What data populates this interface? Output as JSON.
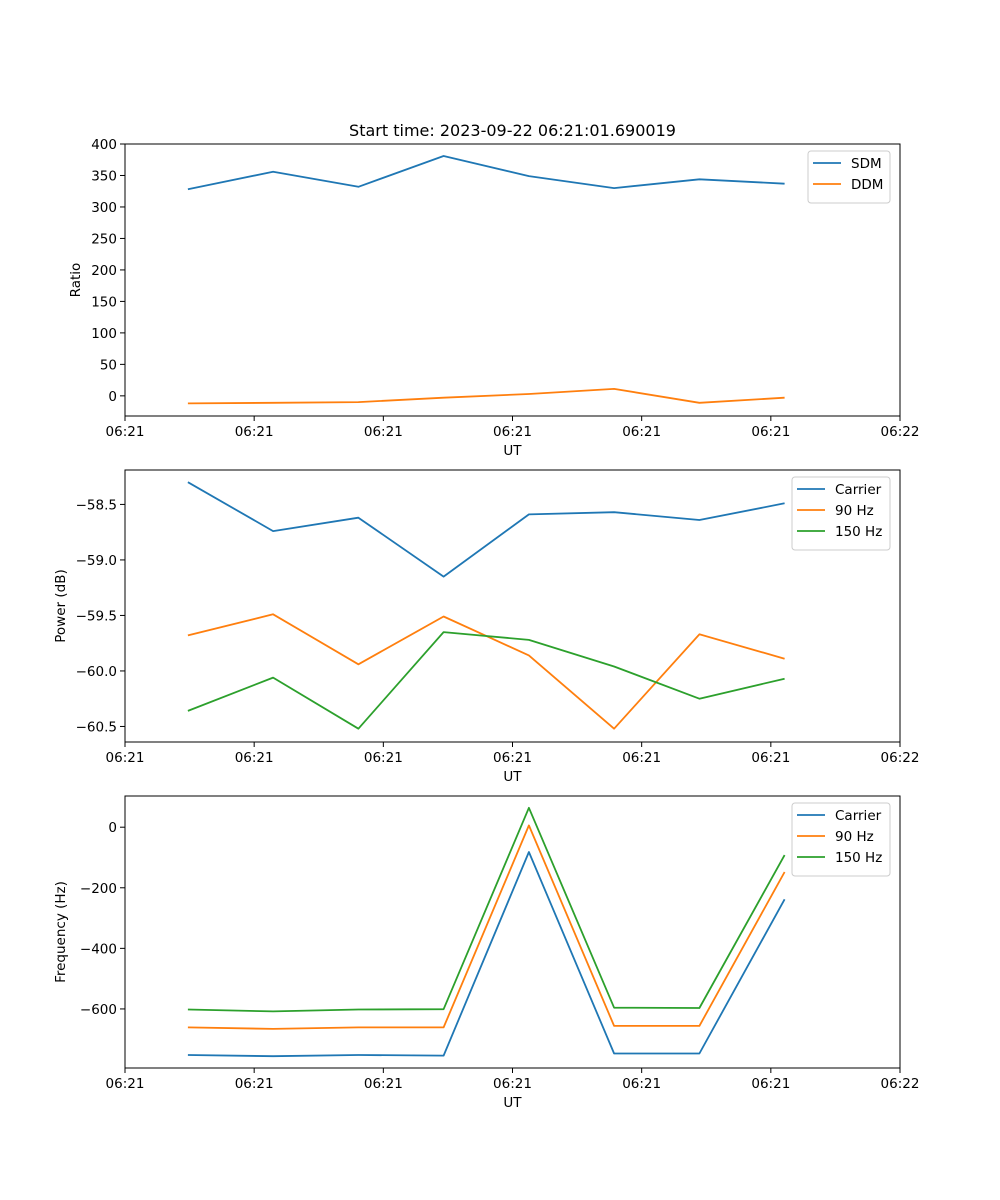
{
  "chart_data": [
    {
      "type": "line",
      "title": "Start time: 2023-09-22 06:21:01.690019",
      "xlabel": "UT",
      "ylabel": "Ratio",
      "xlim": [
        0,
        9
      ],
      "ylim": [
        -32,
        400
      ],
      "x_ticks": [
        0,
        1.5,
        3,
        4.5,
        6,
        7.5,
        9
      ],
      "x_tick_labels": [
        "06:21",
        "06:21",
        "06:21",
        "06:21",
        "06:21",
        "06:21",
        "06:22"
      ],
      "y_ticks": [
        0,
        50,
        100,
        150,
        200,
        250,
        300,
        350,
        400
      ],
      "y_tick_labels": [
        "0",
        "50",
        "100",
        "150",
        "200",
        "250",
        "300",
        "350",
        "400"
      ],
      "legend_position": "top-right",
      "x": [
        0.73,
        1.72,
        2.71,
        3.7,
        4.69,
        5.68,
        6.67,
        7.66
      ],
      "series": [
        {
          "name": "SDM",
          "color": "#1f77b4",
          "values": [
            328,
            356,
            332,
            381,
            349,
            330,
            344,
            337
          ]
        },
        {
          "name": "DDM",
          "color": "#ff7f0e",
          "values": [
            -12,
            -11,
            -10,
            -3,
            3,
            11,
            -11,
            -3
          ]
        }
      ]
    },
    {
      "type": "line",
      "title": "",
      "xlabel": "UT",
      "ylabel": "Power (dB)",
      "xlim": [
        0,
        9
      ],
      "ylim": [
        -60.64,
        -58.19
      ],
      "x_ticks": [
        0,
        1.5,
        3,
        4.5,
        6,
        7.5,
        9
      ],
      "x_tick_labels": [
        "06:21",
        "06:21",
        "06:21",
        "06:21",
        "06:21",
        "06:21",
        "06:22"
      ],
      "y_ticks": [
        -60.5,
        -60.0,
        -59.5,
        -59.0,
        -58.5
      ],
      "y_tick_labels": [
        "−60.5",
        "−60.0",
        "−59.5",
        "−59.0",
        "−58.5"
      ],
      "legend_position": "top-right",
      "x": [
        0.73,
        1.72,
        2.71,
        3.7,
        4.69,
        5.68,
        6.67,
        7.66
      ],
      "series": [
        {
          "name": "Carrier",
          "color": "#1f77b4",
          "values": [
            -58.3,
            -58.74,
            -58.62,
            -59.15,
            -58.59,
            -58.57,
            -58.64,
            -58.49
          ]
        },
        {
          "name": "90 Hz",
          "color": "#ff7f0e",
          "values": [
            -59.68,
            -59.49,
            -59.94,
            -59.51,
            -59.86,
            -60.52,
            -59.67,
            -59.89
          ]
        },
        {
          "name": "150 Hz",
          "color": "#2ca02c",
          "values": [
            -60.36,
            -60.06,
            -60.52,
            -59.65,
            -59.72,
            -59.96,
            -60.25,
            -60.07
          ]
        }
      ]
    },
    {
      "type": "line",
      "title": "",
      "xlabel": "UT",
      "ylabel": "Frequency (Hz)",
      "xlim": [
        0,
        9
      ],
      "ylim": [
        -795,
        103
      ],
      "x_ticks": [
        0,
        1.5,
        3,
        4.5,
        6,
        7.5,
        9
      ],
      "x_tick_labels": [
        "06:21",
        "06:21",
        "06:21",
        "06:21",
        "06:21",
        "06:21",
        "06:22"
      ],
      "y_ticks": [
        -600,
        -400,
        -200,
        0
      ],
      "y_tick_labels": [
        "−600",
        "−400",
        "−200",
        "0"
      ],
      "legend_position": "top-right",
      "x": [
        0.73,
        1.72,
        2.71,
        3.7,
        4.69,
        5.68,
        6.67,
        7.66
      ],
      "series": [
        {
          "name": "Carrier",
          "color": "#1f77b4",
          "values": [
            -752,
            -756,
            -752,
            -754,
            -82,
            -747,
            -747,
            -238
          ]
        },
        {
          "name": "90 Hz",
          "color": "#ff7f0e",
          "values": [
            -661,
            -666,
            -661,
            -661,
            6,
            -656,
            -656,
            -148
          ]
        },
        {
          "name": "150 Hz",
          "color": "#2ca02c",
          "values": [
            -602,
            -608,
            -602,
            -601,
            64,
            -596,
            -597,
            -92
          ]
        }
      ]
    }
  ]
}
